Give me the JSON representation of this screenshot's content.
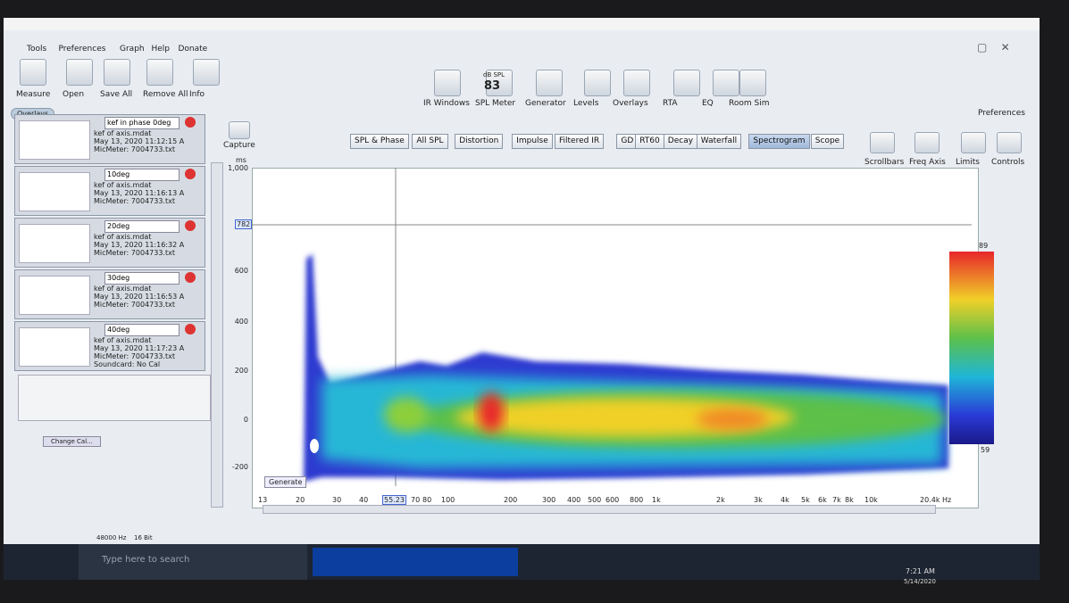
{
  "menu": [
    "Tools",
    "Preferences",
    "Graph",
    "Help",
    "Donate"
  ],
  "toolbar_left": [
    "Measure",
    "Open",
    "Save All",
    "Remove All",
    "Info"
  ],
  "toolbar_center": [
    "IR Windows",
    "SPL Meter",
    "Generator",
    "Levels",
    "Overlays",
    "RTA",
    "EQ",
    "Room Sim"
  ],
  "spl_meter": {
    "unit": "dB SPL",
    "value": "83"
  },
  "preferences": "Preferences",
  "tabs": [
    "SPL & Phase",
    "All SPL",
    "Distortion",
    "Impulse",
    "Filtered IR",
    "GD",
    "RT60",
    "Decay",
    "Waterfall",
    "Spectrogram",
    "Scope"
  ],
  "selected_tab": 9,
  "graph_tools": [
    "Scrollbars",
    "Freq Axis",
    "Limits",
    "Controls"
  ],
  "overlays_button": "Overlays",
  "measurements": [
    {
      "name": "kef in phase 0deg",
      "lines": [
        "kef of axis.mdat",
        "May 13, 2020 11:12:15 A",
        "MicMeter: 7004733.txt"
      ]
    },
    {
      "name": "10deg",
      "lines": [
        "kef of axis.mdat",
        "May 13, 2020 11:16:13 A",
        "MicMeter: 7004733.txt"
      ]
    },
    {
      "name": "20deg",
      "lines": [
        "kef of axis.mdat",
        "May 13, 2020 11:16:32 A",
        "MicMeter: 7004733.txt"
      ]
    },
    {
      "name": "30deg",
      "lines": [
        "kef of axis.mdat",
        "May 13, 2020 11:16:53 A",
        "MicMeter: 7004733.txt"
      ]
    },
    {
      "name": "40deg",
      "lines": [
        "kef of axis.mdat",
        "May 13, 2020 11:17:23 A",
        "MicMeter: 7004733.txt",
        "Soundcard: No Cal"
      ]
    }
  ],
  "capture": "Capture",
  "change_cal": "Change Cal...",
  "graph": {
    "y_unit": "ms",
    "y_ticks": [
      "1,000",
      "600",
      "400",
      "200",
      "0",
      "-200"
    ],
    "y_cursor": "782",
    "x_ticks": [
      "13",
      "20",
      "30",
      "40",
      "70",
      "80",
      "100",
      "200",
      "300",
      "400",
      "500",
      "600",
      "800",
      "1k",
      "2k",
      "3k",
      "4k",
      "5k",
      "6k",
      "7k",
      "8k",
      "10k",
      "20.4k Hz"
    ],
    "x_cursor": "55.23",
    "colorbar": {
      "max": "89",
      "min": "59"
    },
    "generate": "Generate"
  },
  "status": [
    "48000 Hz",
    "16 Bit"
  ],
  "taskbar": {
    "search": "Type here to search",
    "time": "7:21 AM",
    "date": "5/14/2020"
  }
}
